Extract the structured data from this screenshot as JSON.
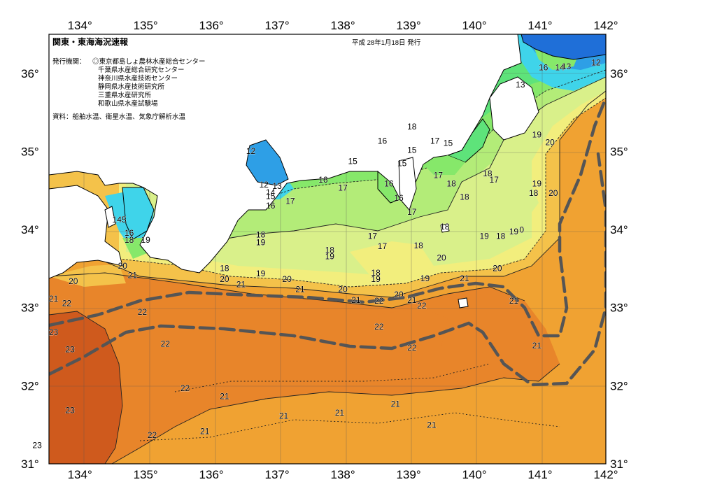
{
  "title": "関東・東海海況速報",
  "issue_date": "平成  28年1月18日  発行",
  "issuer_label": "発行機関：",
  "issuers": [
    "◎東京都島しょ農林水産総合センター",
    "千葉県水産総合研究センター",
    "神奈川県水産技術センター",
    "静岡県水産技術研究所",
    "三重県水産研究所",
    "和歌山県水産試験場"
  ],
  "source": "資料：船舶水温、衛星水温、気象庁解析水温",
  "lon_labels": [
    "134°",
    "135°",
    "136°",
    "137°",
    "138°",
    "139°",
    "140°",
    "141°",
    "142°"
  ],
  "lat_labels": [
    "36°",
    "35°",
    "34°",
    "33°",
    "32°",
    "31°"
  ],
  "isotherm_labels": [
    {
      "t": "12",
      "lon": 136.6,
      "lat": 34.97
    },
    {
      "t": "12",
      "lon": 136.8,
      "lat": 34.54
    },
    {
      "t": "13",
      "lon": 137.0,
      "lat": 34.52
    },
    {
      "t": "14",
      "lon": 136.9,
      "lat": 34.44
    },
    {
      "t": "15",
      "lon": 136.9,
      "lat": 34.39
    },
    {
      "t": "16",
      "lon": 136.9,
      "lat": 34.27
    },
    {
      "t": "17",
      "lon": 137.2,
      "lat": 34.33
    },
    {
      "t": "16",
      "lon": 137.7,
      "lat": 34.6
    },
    {
      "t": "17",
      "lon": 138.0,
      "lat": 34.5
    },
    {
      "t": "15",
      "lon": 138.15,
      "lat": 34.84
    },
    {
      "t": "16",
      "lon": 138.6,
      "lat": 35.1
    },
    {
      "t": "18",
      "lon": 139.05,
      "lat": 35.28
    },
    {
      "t": "15",
      "lon": 139.05,
      "lat": 34.98
    },
    {
      "t": "15",
      "lon": 138.9,
      "lat": 34.81
    },
    {
      "t": "17",
      "lon": 139.4,
      "lat": 35.1
    },
    {
      "t": "15",
      "lon": 139.6,
      "lat": 35.07
    },
    {
      "t": "16",
      "lon": 138.7,
      "lat": 34.55
    },
    {
      "t": "16",
      "lon": 138.85,
      "lat": 34.37
    },
    {
      "t": "17",
      "lon": 139.45,
      "lat": 34.66
    },
    {
      "t": "18",
      "lon": 139.65,
      "lat": 34.55
    },
    {
      "t": "18",
      "lon": 139.85,
      "lat": 34.38
    },
    {
      "t": "18",
      "lon": 140.2,
      "lat": 34.68
    },
    {
      "t": "17",
      "lon": 140.3,
      "lat": 34.6
    },
    {
      "t": "17",
      "lon": 139.05,
      "lat": 34.19
    },
    {
      "t": "18",
      "lon": 139.55,
      "lat": 34.0
    },
    {
      "t": "17",
      "lon": 138.45,
      "lat": 33.88
    },
    {
      "t": "17",
      "lon": 138.6,
      "lat": 33.75
    },
    {
      "t": "18",
      "lon": 139.15,
      "lat": 33.76
    },
    {
      "t": "18",
      "lon": 137.8,
      "lat": 33.7
    },
    {
      "t": "19",
      "lon": 137.8,
      "lat": 33.62
    },
    {
      "t": "18",
      "lon": 136.75,
      "lat": 33.9
    },
    {
      "t": "19",
      "lon": 136.75,
      "lat": 33.8
    },
    {
      "t": "18",
      "lon": 136.2,
      "lat": 33.47
    },
    {
      "t": "19",
      "lon": 136.75,
      "lat": 33.4
    },
    {
      "t": "20",
      "lon": 136.2,
      "lat": 33.33
    },
    {
      "t": "21",
      "lon": 136.45,
      "lat": 33.26
    },
    {
      "t": "20",
      "lon": 137.15,
      "lat": 33.33
    },
    {
      "t": "21",
      "lon": 137.35,
      "lat": 33.2
    },
    {
      "t": "20",
      "lon": 138.0,
      "lat": 33.2
    },
    {
      "t": "21",
      "lon": 138.2,
      "lat": 33.06
    },
    {
      "t": "18",
      "lon": 138.5,
      "lat": 33.41
    },
    {
      "t": "19",
      "lon": 138.5,
      "lat": 33.33
    },
    {
      "t": "20",
      "lon": 138.85,
      "lat": 33.13
    },
    {
      "t": "21",
      "lon": 139.05,
      "lat": 33.06
    },
    {
      "t": "22",
      "lon": 138.55,
      "lat": 33.05
    },
    {
      "t": "22",
      "lon": 139.2,
      "lat": 32.99
    },
    {
      "t": "19",
      "lon": 139.25,
      "lat": 33.34
    },
    {
      "t": "21",
      "lon": 139.85,
      "lat": 33.34
    },
    {
      "t": "20",
      "lon": 139.5,
      "lat": 33.6
    },
    {
      "t": "20",
      "lon": 140.35,
      "lat": 33.47
    },
    {
      "t": "19",
      "lon": 140.15,
      "lat": 33.88
    },
    {
      "t": "18",
      "lon": 140.4,
      "lat": 33.88
    },
    {
      "t": "19",
      "lon": 140.6,
      "lat": 33.94
    },
    {
      "t": "0",
      "lon": 140.72,
      "lat": 33.96
    },
    {
      "t": "19",
      "lon": 140.95,
      "lat": 34.55
    },
    {
      "t": "18",
      "lon": 140.9,
      "lat": 34.43
    },
    {
      "t": "20",
      "lon": 141.2,
      "lat": 34.43
    },
    {
      "t": "19",
      "lon": 140.95,
      "lat": 35.18
    },
    {
      "t": "20",
      "lon": 141.15,
      "lat": 35.08
    },
    {
      "t": "21",
      "lon": 140.6,
      "lat": 33.05
    },
    {
      "t": "21",
      "lon": 140.95,
      "lat": 32.48
    },
    {
      "t": "22",
      "lon": 138.55,
      "lat": 32.72
    },
    {
      "t": "22",
      "lon": 139.05,
      "lat": 32.45
    },
    {
      "t": "13",
      "lon": 140.7,
      "lat": 35.82
    },
    {
      "t": "16",
      "lon": 141.05,
      "lat": 36.04
    },
    {
      "t": "14",
      "lon": 141.3,
      "lat": 36.04
    },
    {
      "t": "13",
      "lon": 141.4,
      "lat": 36.05
    },
    {
      "t": "12",
      "lon": 141.85,
      "lat": 36.1
    },
    {
      "t": "20",
      "lon": 133.9,
      "lat": 33.3
    },
    {
      "t": "21",
      "lon": 133.6,
      "lat": 33.08
    },
    {
      "t": "22",
      "lon": 133.8,
      "lat": 33.02
    },
    {
      "t": "21",
      "lon": 134.8,
      "lat": 33.38
    },
    {
      "t": "20",
      "lon": 134.65,
      "lat": 33.5
    },
    {
      "t": "19",
      "lon": 135.0,
      "lat": 33.83
    },
    {
      "t": "18",
      "lon": 134.75,
      "lat": 33.83
    },
    {
      "t": "16",
      "lon": 134.75,
      "lat": 33.92
    },
    {
      "t": "145",
      "lon": 134.6,
      "lat": 34.09
    },
    {
      "t": "22",
      "lon": 134.95,
      "lat": 32.91
    },
    {
      "t": "23",
      "lon": 133.6,
      "lat": 32.65
    },
    {
      "t": "23",
      "lon": 133.85,
      "lat": 32.43
    },
    {
      "t": "22",
      "lon": 135.3,
      "lat": 32.5
    },
    {
      "t": "23",
      "lon": 133.85,
      "lat": 31.65
    },
    {
      "t": "22",
      "lon": 135.6,
      "lat": 31.93
    },
    {
      "t": "21",
      "lon": 136.2,
      "lat": 31.83
    },
    {
      "t": "21",
      "lon": 137.1,
      "lat": 31.58
    },
    {
      "t": "21",
      "lon": 137.95,
      "lat": 31.62
    },
    {
      "t": "21",
      "lon": 138.8,
      "lat": 31.73
    },
    {
      "t": "21",
      "lon": 139.35,
      "lat": 31.46
    },
    {
      "t": "21",
      "lon": 135.9,
      "lat": 31.38
    },
    {
      "t": "22",
      "lon": 135.1,
      "lat": 31.33
    },
    {
      "t": "23",
      "lon": 133.35,
      "lat": 31.2
    }
  ],
  "legend_colors": {
    "t12": "#1f6fd8",
    "t13": "#2e9fe6",
    "t14": "#3fd4ea",
    "t15": "#5ee37a",
    "t16": "#86e86a",
    "t17": "#b3ec78",
    "t18": "#d9f08a",
    "t19": "#f2ee7d",
    "t20": "#f4c24a",
    "t21": "#f0a232",
    "t22": "#e8852a",
    "t23": "#cf5a1d",
    "land": "#ffffff",
    "kuroshio": "#555555"
  }
}
